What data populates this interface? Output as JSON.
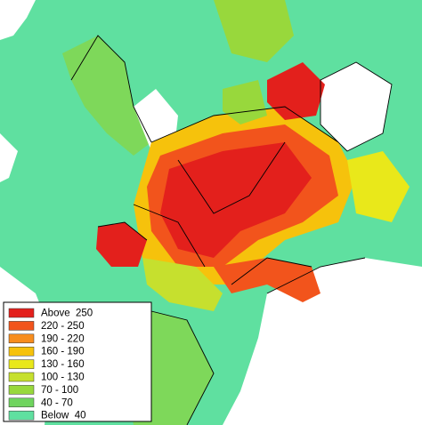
{
  "legend": {
    "items": [
      {
        "label": "Above  250",
        "color": "#e3201c"
      },
      {
        "label": "220 - 250",
        "color": "#f2541c"
      },
      {
        "label": "190 - 220",
        "color": "#f78d1e"
      },
      {
        "label": "160 - 190",
        "color": "#f6c20c"
      },
      {
        "label": "130 - 160",
        "color": "#e9e81a"
      },
      {
        "label": "100 - 130",
        "color": "#c6e02e"
      },
      {
        "label": "70 - 100",
        "color": "#98d83c"
      },
      {
        "label": "40 - 70",
        "color": "#6fd45e"
      },
      {
        "label": "Below  40",
        "color": "#5fe0a0"
      }
    ]
  }
}
